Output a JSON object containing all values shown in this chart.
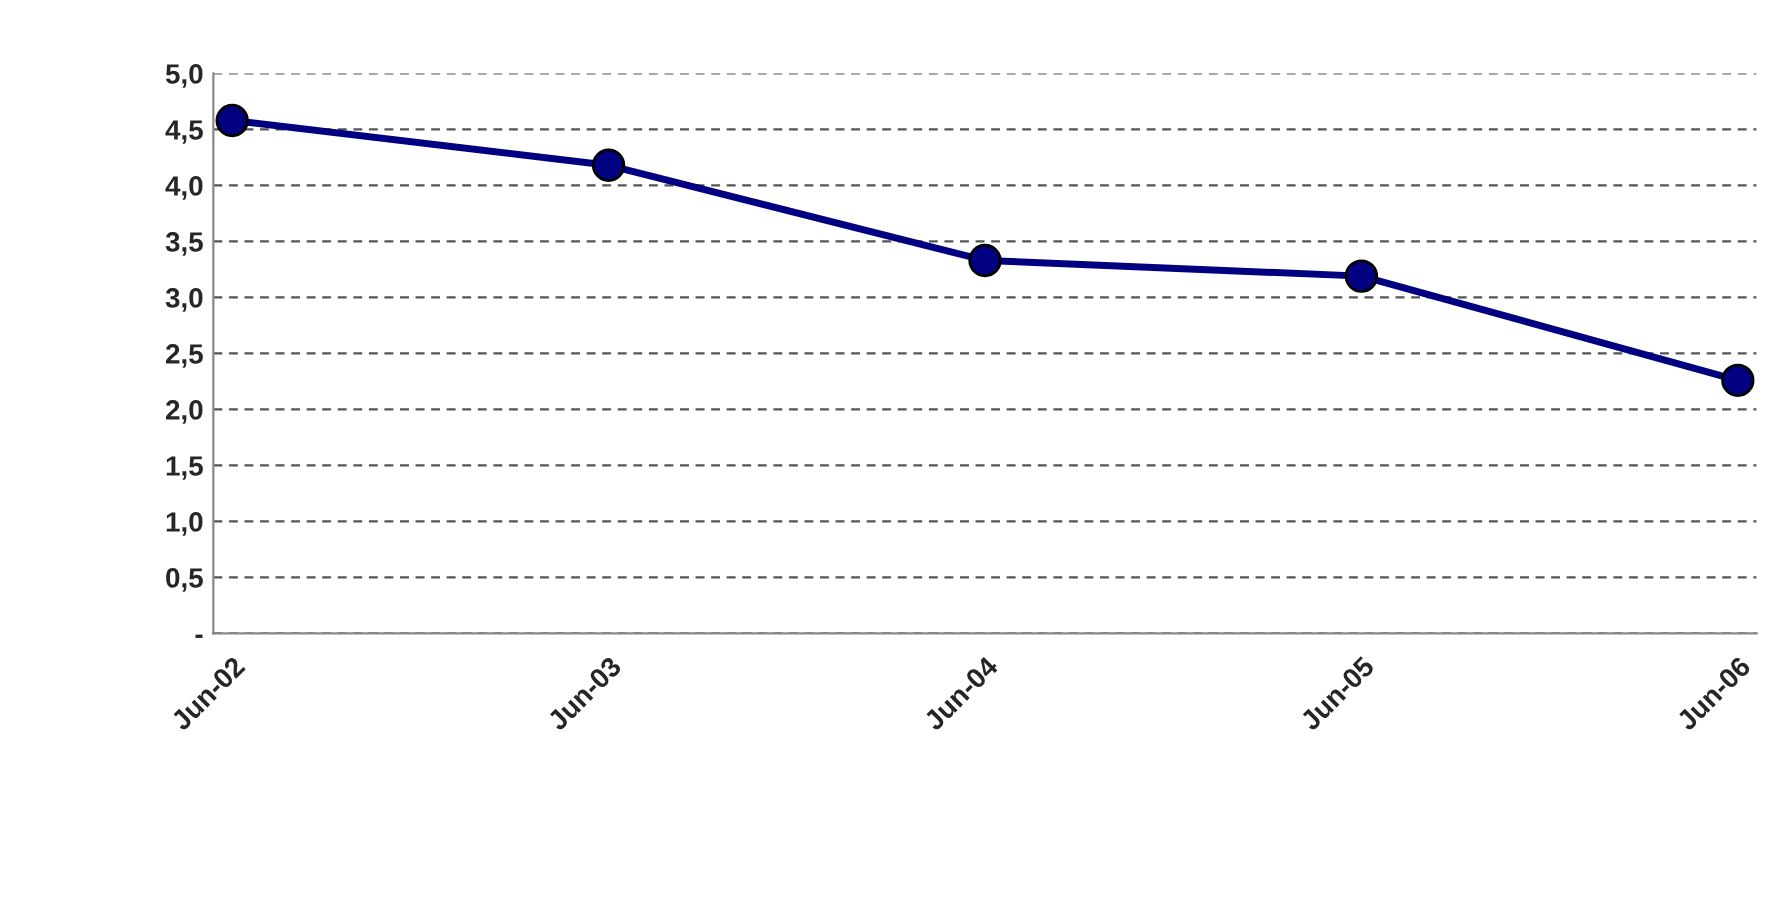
{
  "chart_data": {
    "type": "line",
    "categories": [
      "Jun-02",
      "Jun-03",
      "Jun-04",
      "Jun-05",
      "Jun-06"
    ],
    "series": [
      {
        "color": "#000080",
        "values": [
          4.58,
          4.18,
          3.33,
          3.19,
          2.26
        ]
      }
    ],
    "ylim": [
      0,
      5.0
    ],
    "yticks": [
      {
        "value": 0,
        "label": "-"
      },
      {
        "value": 0.5,
        "label": "0,5"
      },
      {
        "value": 1.0,
        "label": "1,0"
      },
      {
        "value": 1.5,
        "label": "1,5"
      },
      {
        "value": 2.0,
        "label": "2,0"
      },
      {
        "value": 2.5,
        "label": "2,5"
      },
      {
        "value": 3.0,
        "label": "3,0"
      },
      {
        "value": 3.5,
        "label": "3,5"
      },
      {
        "value": 4.0,
        "label": "4,0"
      },
      {
        "value": 4.5,
        "label": "4,5"
      },
      {
        "value": 5.0,
        "label": "5,0"
      }
    ],
    "grid": "y",
    "marker": "circle",
    "line_style": "solid"
  }
}
